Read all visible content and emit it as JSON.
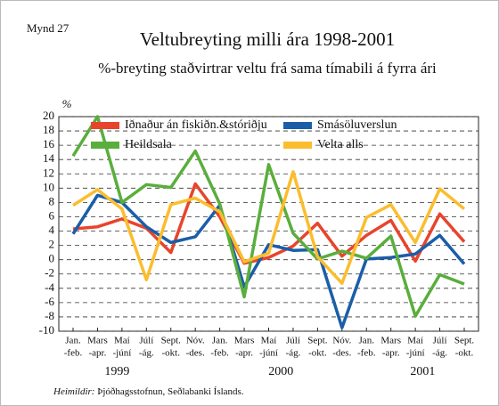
{
  "chart_data": {
    "type": "line",
    "figure_label": "Mynd 27",
    "title": "Veltubreyting milli ára 1998-2001",
    "subtitle": "%-breyting staðvirtrar veltu frá sama tímabili á fyrra ári",
    "y_axis_label": "%",
    "categories": [
      [
        "Jan.",
        "-feb."
      ],
      [
        "Mars",
        "-apr."
      ],
      [
        "Maí",
        "-júní"
      ],
      [
        "Júlí",
        "-ág."
      ],
      [
        "Sept.",
        "-okt."
      ],
      [
        "Nóv.",
        "-des."
      ],
      [
        "Jan.",
        "-feb."
      ],
      [
        "Mars",
        "-apr."
      ],
      [
        "Maí",
        "-júní"
      ],
      [
        "Júlí",
        "-ág."
      ],
      [
        "Sept.",
        "-okt."
      ],
      [
        "Nóv.",
        "-des."
      ],
      [
        "Jan.",
        "-feb."
      ],
      [
        "Mars",
        "-apr."
      ],
      [
        "Maí",
        "-júní"
      ],
      [
        "Júlí",
        "-ág."
      ],
      [
        "Sept.",
        "-okt."
      ]
    ],
    "year_labels": [
      "1999",
      "2000",
      "2001"
    ],
    "series": [
      {
        "name": "Iðnaður án fiskiðn.&stóriðju",
        "color": "#e8442c",
        "values": [
          4.3,
          4.6,
          5.7,
          4.4,
          1.0,
          10.6,
          6.0,
          -0.5,
          0.3,
          1.9,
          5.1,
          0.5,
          3.4,
          5.5,
          -0.2,
          6.4,
          2.5
        ]
      },
      {
        "name": "Smásöluverslun",
        "color": "#1a5ea8",
        "values": [
          3.6,
          9.0,
          8.0,
          4.6,
          2.4,
          3.2,
          7.6,
          -3.8,
          2.1,
          1.3,
          1.4,
          -9.5,
          0.1,
          0.3,
          0.8,
          3.4,
          -0.6
        ]
      },
      {
        "name": "Heildsala",
        "color": "#5aae3c",
        "values": [
          14.5,
          20.0,
          8.0,
          10.5,
          10.1,
          15.2,
          7.8,
          -5.2,
          13.3,
          3.7,
          0.1,
          1.2,
          0.2,
          3.3,
          -7.9,
          -2.1,
          -3.4
        ]
      },
      {
        "name": "Velta alls",
        "color": "#fbbd2e",
        "values": [
          7.6,
          9.8,
          7.1,
          -2.8,
          7.7,
          8.6,
          6.7,
          -0.3,
          0.9,
          12.3,
          0.4,
          -3.3,
          5.9,
          7.7,
          2.4,
          9.9,
          7.1
        ]
      }
    ],
    "ylim": [
      -10,
      20
    ],
    "yticks": [
      -10,
      -8,
      -6,
      -4,
      -2,
      0,
      2,
      4,
      6,
      8,
      10,
      12,
      14,
      16,
      18,
      20
    ],
    "grid": true,
    "source": {
      "label": "Heimildir:",
      "text": "Þjóðhagsstofnun, Seðlabanki Íslands."
    }
  }
}
